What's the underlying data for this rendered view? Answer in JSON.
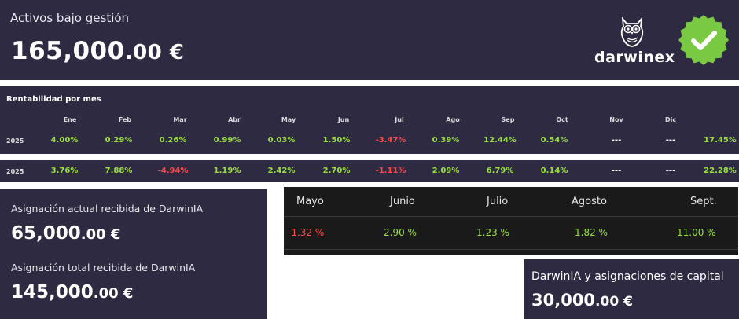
{
  "aum": {
    "label": "Activos bajo gestión",
    "amount_int": "165,000",
    "amount_dec": ".00 €"
  },
  "brand": {
    "name": "darwinex",
    "logo_icon": "owl-icon",
    "badge_icon": "verified-check-badge-icon",
    "badge_color": "#7ac943"
  },
  "rentabilidad": {
    "title": "Rentabilidad por mes",
    "months": [
      "Ene",
      "Feb",
      "Mar",
      "Abr",
      "May",
      "Jun",
      "Jul",
      "Ago",
      "Sep",
      "Oct",
      "Nov",
      "Dic"
    ],
    "rows": [
      {
        "year": "2025",
        "values": [
          "4.00%",
          "0.29%",
          "0.26%",
          "0.99%",
          "0.03%",
          "1.50%",
          "-3.47%",
          "0.39%",
          "12.44%",
          "0.54%",
          "---",
          "---"
        ],
        "total": "17.45%"
      },
      {
        "year": "2025",
        "values": [
          "3.76%",
          "7.88%",
          "-4.94%",
          "1.19%",
          "2.42%",
          "2.70%",
          "-1.11%",
          "2.09%",
          "6.79%",
          "0.14%",
          "---",
          "---"
        ],
        "total": "22.28%"
      }
    ]
  },
  "asignacion": {
    "actual_label": "Asignación actual recibida de DarwinIA",
    "actual_int": "65,000",
    "actual_dec": ".00 €",
    "total_label": "Asignación total recibida de DarwinIA",
    "total_int": "145,000",
    "total_dec": ".00 €"
  },
  "monthly_table": {
    "headers": [
      "Mayo",
      "Junio",
      "Julio",
      "Agosto",
      "Sept."
    ],
    "values": [
      "-1.32 %",
      "2.90 %",
      "1.23 %",
      "1.82 %",
      "11.00 %"
    ]
  },
  "capital": {
    "label": "DarwinIA y asignaciones de capital",
    "amount_int": "30,000",
    "amount_dec": ".00 €"
  },
  "colors": {
    "panel": "#2d2a42",
    "positive": "#9ae03a",
    "negative": "#ff4a4a",
    "table_bg": "#1a1a1a"
  }
}
